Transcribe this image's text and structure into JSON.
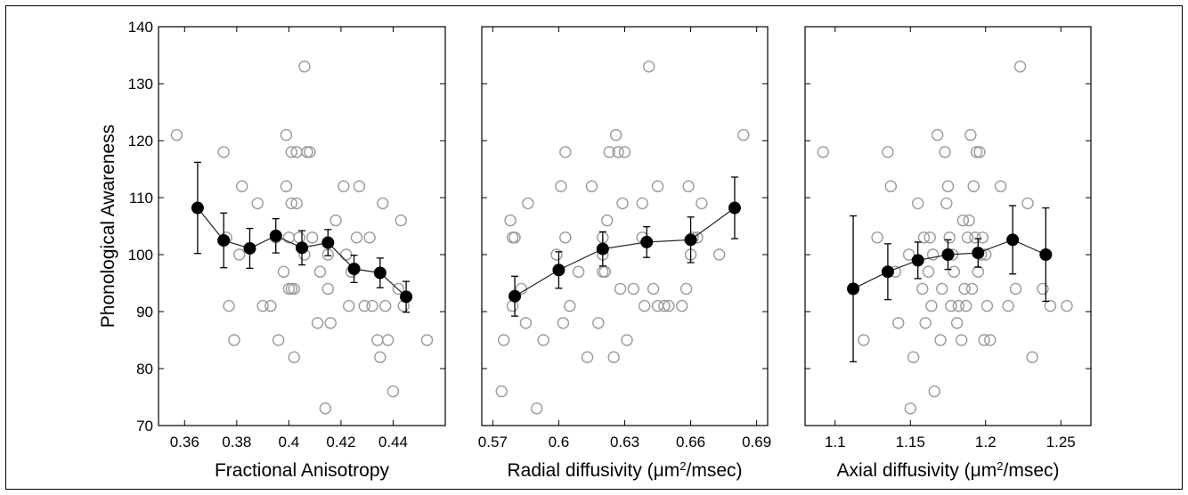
{
  "chart_data": [
    {
      "type": "scatter",
      "title": "",
      "xlabel": "Fractional Anisotropy",
      "ylabel": "Phonological Awareness",
      "xlim": [
        0.35,
        0.46
      ],
      "ylim": [
        70,
        140
      ],
      "xticks": [
        0.36,
        0.38,
        0.4,
        0.42,
        0.44
      ],
      "xtick_labels": [
        "0.36",
        "0.38",
        "0.4",
        "0.42",
        "0.44"
      ],
      "yticks": [
        70,
        80,
        90,
        100,
        110,
        120,
        130,
        140
      ],
      "ytick_labels": [
        "70",
        "80",
        "90",
        "100",
        "110",
        "120",
        "130",
        "140"
      ],
      "series": [
        {
          "kind": "scatter-open",
          "x": [
            0.357,
            0.375,
            0.376,
            0.377,
            0.379,
            0.381,
            0.382,
            0.388,
            0.39,
            0.393,
            0.395,
            0.396,
            0.398,
            0.399,
            0.399,
            0.4,
            0.4,
            0.401,
            0.401,
            0.401,
            0.402,
            0.402,
            0.403,
            0.403,
            0.404,
            0.406,
            0.406,
            0.407,
            0.408,
            0.409,
            0.411,
            0.412,
            0.414,
            0.415,
            0.415,
            0.416,
            0.418,
            0.421,
            0.422,
            0.423,
            0.424,
            0.426,
            0.427,
            0.429,
            0.431,
            0.432,
            0.434,
            0.435,
            0.436,
            0.437,
            0.438,
            0.44,
            0.442,
            0.443,
            0.444,
            0.453
          ],
          "y": [
            121,
            118,
            103,
            91,
            85,
            100,
            112,
            109,
            91,
            91,
            103,
            85,
            97,
            121,
            112,
            94,
            103,
            118,
            94,
            109,
            82,
            94,
            109,
            118,
            103,
            133,
            100,
            118,
            118,
            103,
            88,
            97,
            73,
            94,
            100,
            88,
            106,
            112,
            100,
            91,
            97,
            103,
            112,
            91,
            103,
            91,
            85,
            82,
            109,
            91,
            85,
            76,
            94,
            106,
            91,
            85
          ]
        },
        {
          "kind": "mean-with-error",
          "x": [
            0.365,
            0.375,
            0.385,
            0.395,
            0.405,
            0.415,
            0.425,
            0.435,
            0.445
          ],
          "y": [
            108.2,
            102.5,
            101.1,
            103.3,
            101.2,
            102.1,
            97.5,
            96.8,
            92.6
          ],
          "yerr": [
            8.0,
            4.8,
            3.5,
            3.0,
            3.0,
            2.3,
            2.4,
            2.6,
            2.7
          ]
        }
      ]
    },
    {
      "type": "scatter",
      "title": "",
      "xlabel": "Radial diffusivity (μm²/msec)",
      "ylabel": "",
      "xlim": [
        0.565,
        0.695
      ],
      "ylim": [
        70,
        140
      ],
      "xticks": [
        0.57,
        0.6,
        0.63,
        0.66,
        0.69
      ],
      "xtick_labels": [
        "0.57",
        "0.6",
        "0.63",
        "0.66",
        "0.69"
      ],
      "series": [
        {
          "kind": "scatter-open",
          "x": [
            0.574,
            0.575,
            0.578,
            0.579,
            0.579,
            0.58,
            0.583,
            0.585,
            0.586,
            0.59,
            0.593,
            0.599,
            0.601,
            0.602,
            0.603,
            0.603,
            0.605,
            0.609,
            0.613,
            0.615,
            0.618,
            0.62,
            0.62,
            0.62,
            0.621,
            0.622,
            0.623,
            0.625,
            0.626,
            0.627,
            0.628,
            0.629,
            0.63,
            0.631,
            0.634,
            0.638,
            0.638,
            0.639,
            0.641,
            0.643,
            0.645,
            0.645,
            0.648,
            0.65,
            0.656,
            0.658,
            0.659,
            0.66,
            0.661,
            0.663,
            0.665,
            0.673,
            0.684
          ],
          "y": [
            76,
            85,
            106,
            91,
            103,
            103,
            94,
            88,
            109,
            73,
            85,
            100,
            112,
            88,
            118,
            103,
            91,
            97,
            82,
            112,
            88,
            103,
            97,
            100,
            97,
            106,
            118,
            82,
            121,
            118,
            94,
            109,
            118,
            85,
            94,
            109,
            103,
            91,
            133,
            94,
            112,
            91,
            91,
            91,
            91,
            94,
            112,
            100,
            103,
            103,
            109,
            100,
            121
          ]
        },
        {
          "kind": "mean-with-error",
          "x": [
            0.58,
            0.6,
            0.62,
            0.64,
            0.66,
            0.68
          ],
          "y": [
            92.7,
            97.3,
            101.0,
            102.2,
            102.6,
            108.2
          ],
          "yerr": [
            3.5,
            3.2,
            3.0,
            2.7,
            4.0,
            5.4
          ]
        }
      ]
    },
    {
      "type": "scatter",
      "title": "",
      "xlabel": "Axial diffusivity (μm²/msec)",
      "ylabel": "",
      "xlim": [
        1.08,
        1.27
      ],
      "ylim": [
        70,
        140
      ],
      "xticks": [
        1.1,
        1.15,
        1.2,
        1.25
      ],
      "xtick_labels": [
        "1.1",
        "1.15",
        "1.2",
        "1.25"
      ],
      "series": [
        {
          "kind": "scatter-open",
          "x": [
            1.092,
            1.119,
            1.128,
            1.135,
            1.137,
            1.14,
            1.142,
            1.149,
            1.15,
            1.152,
            1.155,
            1.158,
            1.159,
            1.16,
            1.162,
            1.163,
            1.164,
            1.165,
            1.166,
            1.168,
            1.17,
            1.171,
            1.173,
            1.174,
            1.175,
            1.176,
            1.177,
            1.178,
            1.179,
            1.181,
            1.182,
            1.184,
            1.185,
            1.186,
            1.187,
            1.188,
            1.189,
            1.19,
            1.191,
            1.192,
            1.193,
            1.194,
            1.195,
            1.196,
            1.197,
            1.198,
            1.199,
            1.2,
            1.201,
            1.203,
            1.21,
            1.215,
            1.22,
            1.223,
            1.228,
            1.231,
            1.238,
            1.243,
            1.254
          ],
          "y": [
            118,
            85,
            103,
            118,
            112,
            97,
            88,
            100,
            73,
            82,
            109,
            94,
            103,
            88,
            97,
            103,
            91,
            100,
            76,
            121,
            85,
            94,
            118,
            109,
            112,
            103,
            91,
            100,
            97,
            88,
            91,
            85,
            106,
            94,
            91,
            103,
            106,
            121,
            94,
            112,
            103,
            118,
            97,
            118,
            100,
            103,
            85,
            100,
            91,
            85,
            112,
            91,
            94,
            133,
            109,
            82,
            94,
            91,
            91
          ]
        },
        {
          "kind": "mean-with-error",
          "x": [
            1.112,
            1.135,
            1.155,
            1.175,
            1.195,
            1.218,
            1.24
          ],
          "y": [
            94.0,
            97.0,
            99.0,
            100.0,
            100.3,
            102.6,
            100.0
          ],
          "yerr": [
            12.8,
            4.9,
            3.2,
            2.6,
            2.5,
            6.0,
            8.2
          ]
        }
      ]
    }
  ]
}
